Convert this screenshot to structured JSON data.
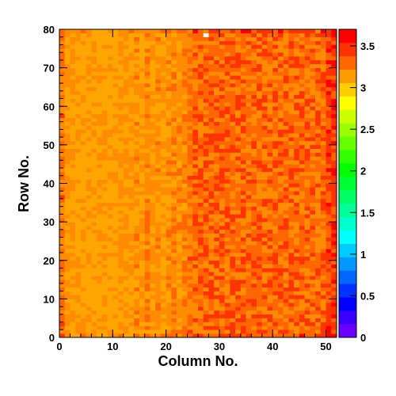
{
  "chart_data": {
    "type": "heatmap",
    "title": "",
    "xlabel": "Column No.",
    "ylabel": "Row No.",
    "xlim": [
      0,
      52
    ],
    "ylim": [
      0,
      80
    ],
    "x_ticks": [
      "0",
      "10",
      "20",
      "30",
      "40",
      "50"
    ],
    "y_ticks": [
      "0",
      "10",
      "20",
      "30",
      "40",
      "50",
      "60",
      "70",
      "80"
    ],
    "colorbar": {
      "range": [
        0,
        3.7
      ],
      "ticks": [
        "0",
        "0.5",
        "1",
        "1.5",
        "2",
        "2.5",
        "3",
        "3.5"
      ],
      "palette": [
        "#6a00ff",
        "#3a00ff",
        "#0000ff",
        "#0033ff",
        "#0066ff",
        "#0099ff",
        "#00ccff",
        "#00ffff",
        "#00ffcc",
        "#00ff99",
        "#00ff66",
        "#00ff33",
        "#00ff00",
        "#33ff00",
        "#66ff00",
        "#99ff00",
        "#ccff00",
        "#ffff00",
        "#ffcc00",
        "#ff9900",
        "#ff6600",
        "#ff3300",
        "#ff0000"
      ]
    },
    "column_levels": [
      3.3,
      3.15,
      3.15,
      3.1,
      3.1,
      3.1,
      3.1,
      3.1,
      3.1,
      3.1,
      3.1,
      3.15,
      3.15,
      3.15,
      3.2,
      3.15,
      3.25,
      3.15,
      3.2,
      3.15,
      3.2,
      3.25,
      3.2,
      3.25,
      3.3,
      3.35,
      3.35,
      3.35,
      3.35,
      3.35,
      3.35,
      3.35,
      3.35,
      3.35,
      3.35,
      3.35,
      3.35,
      3.35,
      3.35,
      3.35,
      3.35,
      3.35,
      3.35,
      3.35,
      3.35,
      3.35,
      3.35,
      3.35,
      3.35,
      3.35,
      3.45,
      3.5
    ],
    "colors": {
      "low": "#ffa500",
      "mid": "#ff8c00",
      "high": "#ff6600",
      "peak": "#ff3300",
      "max": "#ff0000",
      "hot_pixel": "#ffffff"
    },
    "hot_pixel": {
      "x": 27,
      "y": 78,
      "value": "0"
    }
  }
}
